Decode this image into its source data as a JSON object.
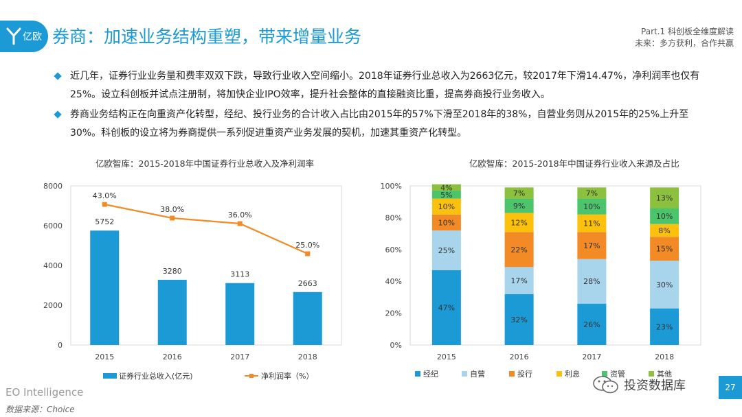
{
  "header": {
    "logo_text": "亿欧",
    "title": "券商：加速业务结构重塑，带来增量业务",
    "part": "Part.1  科创板全维度解读",
    "subtitle": "未来：多方获利，合作共赢"
  },
  "bullets": [
    "近几年，证券行业业务量和费率双双下跌，导致行业收入空间缩小。2018年证券行业总收入为2663亿元，较2017年下滑14.47%，净利润率也仅有25%。设立科创板并试点注册制，将加快企业IPO效率，提升社会整体的直接融资比重，提高券商投行业务收入。",
    "券商业务结构正在向重资产化转型，经纪、投行业务的合计收入占比由2015年的57%下滑至2018年的38%，自营业务则从2015年的25%上升至30%。科创板的设立将为券商提供一系列促进重资产业务发展的契机，加速其重资产化转型。"
  ],
  "colors": {
    "brand": "#1b9ad6",
    "line": "#f28a25"
  },
  "footer": {
    "english": "EO Intelligence",
    "source": "数据来源：Choice",
    "wechat": "投资数据库",
    "page": "27"
  },
  "chart_data": [
    {
      "type": "bar",
      "title": "亿欧智库：2015-2018年中国证券行业总收入及净利润率",
      "categories": [
        "2015",
        "2016",
        "2017",
        "2018"
      ],
      "series": [
        {
          "name": "证券行业总收入(亿元)",
          "type": "bar",
          "values": [
            5752,
            3280,
            3113,
            2663
          ],
          "labels": [
            "5752",
            "3280",
            "3113",
            "2663"
          ]
        },
        {
          "name": "净利润率（%）",
          "type": "line",
          "values": [
            43.0,
            38.0,
            36.0,
            25.0
          ],
          "labels": [
            "43.0%",
            "38.0%",
            "36.0%",
            "25.0%"
          ]
        }
      ],
      "y_ticks": [
        "8000",
        "6000",
        "4000",
        "2000",
        "0"
      ],
      "ylim": [
        0,
        8000
      ],
      "legend_position": "bottom"
    },
    {
      "type": "bar",
      "stacked": true,
      "title": "亿欧智库：2015-2018年中国证券行业收入来源及占比",
      "categories": [
        "2015",
        "2016",
        "2017",
        "2018"
      ],
      "series": [
        {
          "name": "经纪",
          "color": "#1b9ad6",
          "values": [
            47,
            32,
            26,
            23
          ],
          "labels": [
            "47%",
            "32%",
            "26%",
            "23%"
          ]
        },
        {
          "name": "自营",
          "color": "#a8d5ec",
          "values": [
            25,
            17,
            28,
            30
          ],
          "labels": [
            "25%",
            "17%",
            "28%",
            "30%"
          ]
        },
        {
          "name": "投行",
          "color": "#f28a25",
          "values": [
            10,
            22,
            17,
            15
          ],
          "labels": [
            "10%",
            "22%",
            "17%",
            "15%"
          ]
        },
        {
          "name": "利息",
          "color": "#fbc10c",
          "values": [
            10,
            12,
            11,
            8
          ],
          "labels": [
            "10%",
            "12%",
            "11%",
            "8%"
          ]
        },
        {
          "name": "资管",
          "color": "#4cc46c",
          "values": [
            5,
            9,
            10,
            10
          ],
          "labels": [
            "5%",
            "9%",
            "10%",
            "10%"
          ]
        },
        {
          "name": "其他",
          "color": "#8cc13f",
          "values": [
            4,
            7,
            7,
            13
          ],
          "labels": [
            "4%",
            "7%",
            "7%",
            "13%"
          ]
        }
      ],
      "y_ticks": [
        "100%",
        "80%",
        "60%",
        "40%",
        "20%",
        "0%"
      ],
      "ylim": [
        0,
        100
      ],
      "legend_position": "bottom"
    }
  ]
}
